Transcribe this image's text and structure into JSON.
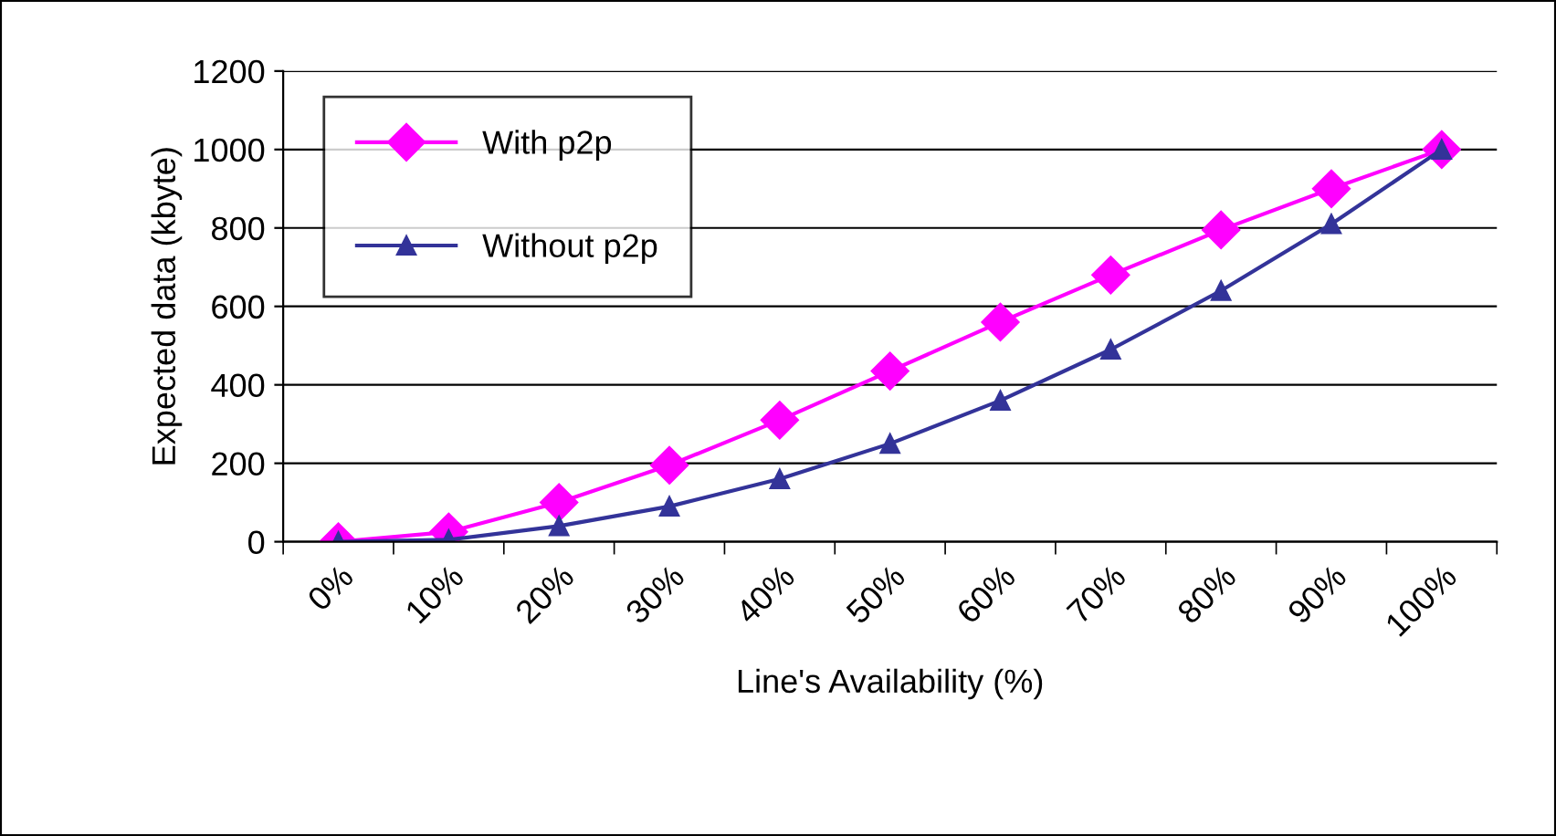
{
  "chart_data": {
    "type": "line",
    "xlabel": "Line's Availability (%)",
    "ylabel": "Expected data (kbyte)",
    "categories": [
      "0%",
      "10%",
      "20%",
      "30%",
      "40%",
      "50%",
      "60%",
      "70%",
      "80%",
      "90%",
      "100%"
    ],
    "series": [
      {
        "name": "With p2p",
        "color": "#ff00ff",
        "marker": "diamond",
        "values": [
          0,
          25,
          100,
          195,
          310,
          435,
          560,
          680,
          795,
          900,
          1000
        ]
      },
      {
        "name": "Without p2p",
        "color": "#333399",
        "marker": "triangle",
        "values": [
          0,
          5,
          40,
          90,
          160,
          250,
          360,
          490,
          640,
          810,
          1000
        ]
      }
    ],
    "ylim": [
      0,
      1200
    ],
    "yticks": [
      0,
      200,
      400,
      600,
      800,
      1000,
      1200
    ],
    "grid": "y",
    "legend": "top left",
    "line_style": "solid"
  }
}
